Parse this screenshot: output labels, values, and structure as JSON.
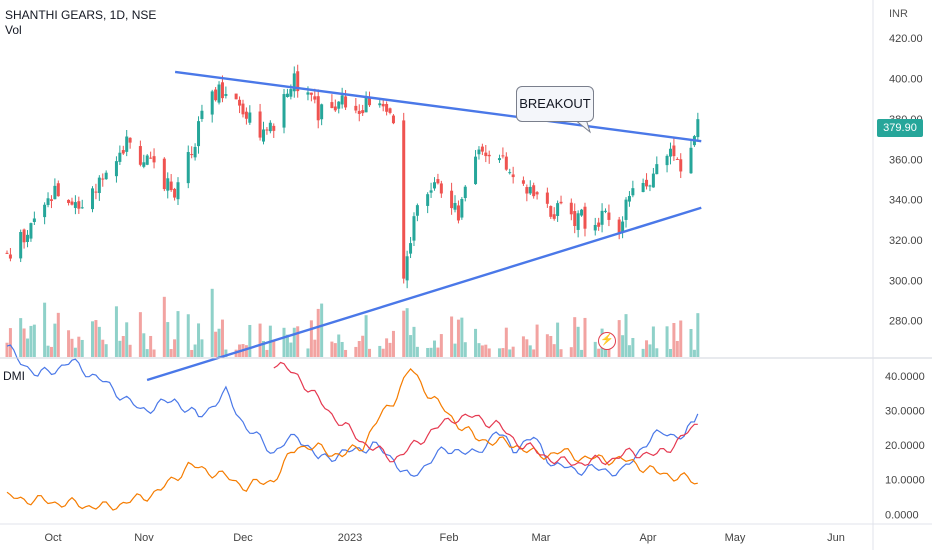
{
  "header": {
    "symbol_line": "SHANTHI GEARS, 1D, NSE",
    "volume_label": "Vol"
  },
  "unit_label": "INR",
  "last_price": "379.90",
  "annotation": "BREAKOUT",
  "dmi_label": "DMI",
  "flash_icon": "lightning-icon",
  "colors": {
    "up": "#26a69a",
    "down": "#ef5350",
    "volume_up": "#8fd1c9",
    "volume_down": "#f2a3a1",
    "trendline": "#4a78e8",
    "di_plus": "#4a78e8",
    "di_minus": "#f57c00",
    "adx": "#e53950"
  },
  "chart_data": [
    {
      "type": "candlestick",
      "title": "SHANTHI GEARS, 1D, NSE",
      "yaxis": {
        "label": "INR",
        "ticks": [
          "280.00",
          "300.00",
          "320.00",
          "340.00",
          "360.00",
          "380.00",
          "400.00",
          "420.00"
        ],
        "ylim": [
          262,
          434
        ]
      },
      "xaxis": {
        "ticks": [
          "Oct",
          "Nov",
          "Dec",
          "2023",
          "Feb",
          "Mar",
          "Apr",
          "May",
          "Jun"
        ]
      },
      "last_value": 379.9,
      "trendlines": [
        {
          "name": "resistance",
          "from": [
            "Oct 26",
            402
          ],
          "to": [
            "Mar 23",
            369
          ]
        },
        {
          "name": "support",
          "from": [
            "Oct 26",
            258
          ],
          "to": [
            "Mar 23",
            336
          ]
        }
      ],
      "annotations": [
        "BREAKOUT"
      ],
      "anchors": [
        [
          "Sep 1",
          312
        ],
        [
          "Sep 8",
          325
        ],
        [
          "Sep 15",
          345
        ],
        [
          "Sep 22",
          332
        ],
        [
          "Sep 29",
          355
        ],
        [
          "Oct 6",
          368
        ],
        [
          "Oct 13",
          356
        ],
        [
          "Oct 20",
          345
        ],
        [
          "Oct 27",
          375
        ],
        [
          "Oct 31",
          393
        ],
        [
          "Nov 4",
          396
        ],
        [
          "Nov 10",
          384
        ],
        [
          "Nov 16",
          371
        ],
        [
          "Nov 21",
          388
        ],
        [
          "Nov 24",
          398
        ],
        [
          "Dec 1",
          384
        ],
        [
          "Dec 8",
          389
        ],
        [
          "Dec 14",
          386
        ],
        [
          "Dec 19",
          392
        ],
        [
          "Dec 23",
          375
        ],
        [
          "Dec 26",
          300
        ],
        [
          "Dec 28",
          322
        ],
        [
          "Dec 30",
          340
        ],
        [
          "Jan 5",
          347
        ],
        [
          "Jan 11",
          334
        ],
        [
          "Jan 16",
          359
        ],
        [
          "Jan 20",
          365
        ],
        [
          "Jan 25",
          357
        ],
        [
          "Jan 31",
          348
        ],
        [
          "Feb 6",
          335
        ],
        [
          "Feb 13",
          332
        ],
        [
          "Feb 20",
          329
        ],
        [
          "Feb 24",
          331
        ],
        [
          "Feb 27",
          321
        ],
        [
          "Mar 1",
          340
        ],
        [
          "Mar 6",
          348
        ],
        [
          "Mar 10",
          355
        ],
        [
          "Mar 14",
          367
        ],
        [
          "Mar 17",
          358
        ],
        [
          "Mar 20",
          364
        ],
        [
          "Mar 22",
          379.9
        ]
      ]
    },
    {
      "type": "bar",
      "title": "Vol",
      "note": "volume histogram, no axis values shown"
    },
    {
      "type": "line",
      "title": "DMI",
      "yaxis": {
        "ticks": [
          "0.0000",
          "10.0000",
          "20.0000",
          "30.0000",
          "40.0000"
        ],
        "ylim": [
          -2.5,
          44
        ]
      },
      "series": [
        {
          "color": "#4a78e8",
          "points": [
            [
              "Sep 1",
              48
            ],
            [
              "Sep 10",
              40
            ],
            [
              "Sep 20",
              44
            ],
            [
              "Oct 1",
              37
            ],
            [
              "Oct 10",
              30
            ],
            [
              "Oct 20",
              33
            ],
            [
              "Oct 27",
              28
            ],
            [
              "Nov 4",
              35
            ],
            [
              "Nov 10",
              25
            ],
            [
              "Nov 18",
              18
            ],
            [
              "Nov 25",
              23
            ],
            [
              "Dec 1",
              16
            ],
            [
              "Dec 10",
              18
            ],
            [
              "Dec 17",
              20
            ],
            [
              "Dec 23",
              16
            ],
            [
              "Dec 28",
              10
            ],
            [
              "Jan 4",
              17
            ],
            [
              "Jan 10",
              19
            ],
            [
              "Jan 16",
              17
            ],
            [
              "Jan 22",
              24
            ],
            [
              "Jan 27",
              19
            ],
            [
              "Feb 2",
              22
            ],
            [
              "Feb 8",
              14
            ],
            [
              "Feb 14",
              13
            ],
            [
              "Feb 22",
              13
            ],
            [
              "Feb 28",
              12
            ],
            [
              "Mar 6",
              20
            ],
            [
              "Mar 12",
              24
            ],
            [
              "Mar 18",
              22
            ],
            [
              "Mar 22",
              29
            ]
          ]
        },
        {
          "color": "#f57c00",
          "points": [
            [
              "Sep 1",
              5
            ],
            [
              "Sep 10",
              4
            ],
            [
              "Sep 20",
              3
            ],
            [
              "Sep 30",
              2
            ],
            [
              "Oct 8",
              4
            ],
            [
              "Oct 16",
              7
            ],
            [
              "Oct 24",
              14
            ],
            [
              "Nov 1",
              12
            ],
            [
              "Nov 10",
              8
            ],
            [
              "Nov 18",
              10
            ],
            [
              "Nov 25",
              20
            ],
            [
              "Dec 1",
              19
            ],
            [
              "Dec 8",
              17
            ],
            [
              "Dec 14",
              20
            ],
            [
              "Dec 19",
              28
            ],
            [
              "Dec 23",
              33
            ],
            [
              "Dec 28",
              42
            ],
            [
              "Jan 3",
              34
            ],
            [
              "Jan 10",
              27
            ],
            [
              "Jan 16",
              22
            ],
            [
              "Jan 22",
              21
            ],
            [
              "Jan 28",
              20
            ],
            [
              "Feb 3",
              17
            ],
            [
              "Feb 10",
              18
            ],
            [
              "Feb 18",
              16
            ],
            [
              "Feb 25",
              16
            ],
            [
              "Mar 3",
              15
            ],
            [
              "Mar 10",
              12
            ],
            [
              "Mar 16",
              11
            ],
            [
              "Mar 22",
              9
            ]
          ]
        },
        {
          "color": "#e53950",
          "points": [
            [
              "Nov 18",
              44
            ],
            [
              "Nov 25",
              40
            ],
            [
              "Dec 1",
              33
            ],
            [
              "Dec 8",
              26
            ],
            [
              "Dec 14",
              21
            ],
            [
              "Dec 19",
              18
            ],
            [
              "Dec 23",
              16
            ],
            [
              "Dec 28",
              19
            ],
            [
              "Jan 3",
              24
            ],
            [
              "Jan 10",
              28
            ],
            [
              "Jan 16",
              28
            ],
            [
              "Jan 22",
              26
            ],
            [
              "Jan 28",
              21
            ],
            [
              "Feb 3",
              18
            ],
            [
              "Feb 10",
              15
            ],
            [
              "Feb 18",
              15
            ],
            [
              "Feb 25",
              16
            ],
            [
              "Mar 3",
              18
            ],
            [
              "Mar 10",
              17
            ],
            [
              "Mar 16",
              21
            ],
            [
              "Mar 22",
              26
            ]
          ]
        }
      ]
    }
  ]
}
